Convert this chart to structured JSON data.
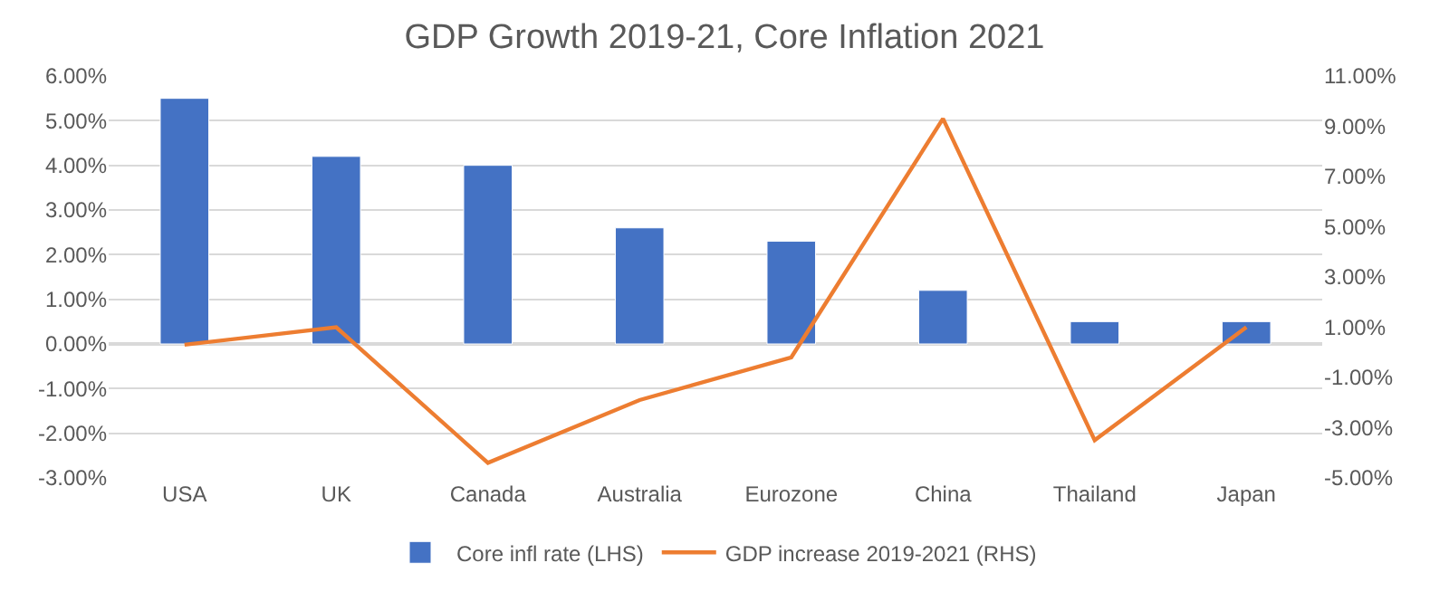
{
  "chart_data": {
    "type": "bar",
    "title": "GDP Growth 2019-21, Core Inflation 2021",
    "categories": [
      "USA",
      "UK",
      "Canada",
      "Australia",
      "Eurozone",
      "China",
      "Thailand",
      "Japan"
    ],
    "series": [
      {
        "name": "Core infl rate (LHS)",
        "color": "#4472c4",
        "values": [
          5.5,
          4.2,
          4.0,
          2.6,
          2.3,
          1.2,
          0.5,
          0.5
        ]
      },
      {
        "name": "GDP increase 2019-2021 (RHS)",
        "color": "#ed7d31",
        "type": "line",
        "axis": "y2",
        "marker": "none",
        "values": [
          0.3,
          1.0,
          -4.4,
          -1.9,
          -0.2,
          9.3,
          -3.5,
          1.0
        ]
      }
    ],
    "ylim": [
      -3,
      6
    ],
    "yticks": [
      {
        "value": 6,
        "label": "6.00%"
      },
      {
        "value": 5,
        "label": "5.00%"
      },
      {
        "value": 4,
        "label": "4.00%"
      },
      {
        "value": 3,
        "label": "3.00%"
      },
      {
        "value": 2,
        "label": "2.00%"
      },
      {
        "value": 1,
        "label": "1.00%"
      },
      {
        "value": 0,
        "label": "0.00%"
      },
      {
        "value": -1,
        "label": "-1.00%"
      },
      {
        "value": -2,
        "label": "-2.00%"
      },
      {
        "value": -3,
        "label": "-3.00%"
      }
    ],
    "y2lim": [
      -5,
      11
    ],
    "y2ticks": [
      {
        "value": 11,
        "label": "11.00%"
      },
      {
        "value": 9,
        "label": "9.00%"
      },
      {
        "value": 7,
        "label": "7.00%"
      },
      {
        "value": 5,
        "label": "5.00%"
      },
      {
        "value": 3,
        "label": "3.00%"
      },
      {
        "value": 1,
        "label": "1.00%"
      },
      {
        "value": -1,
        "label": "-1.00%"
      },
      {
        "value": -3,
        "label": "-3.00%"
      },
      {
        "value": -5,
        "label": "-5.00%"
      }
    ],
    "grid": "y",
    "legend": "bottom"
  }
}
